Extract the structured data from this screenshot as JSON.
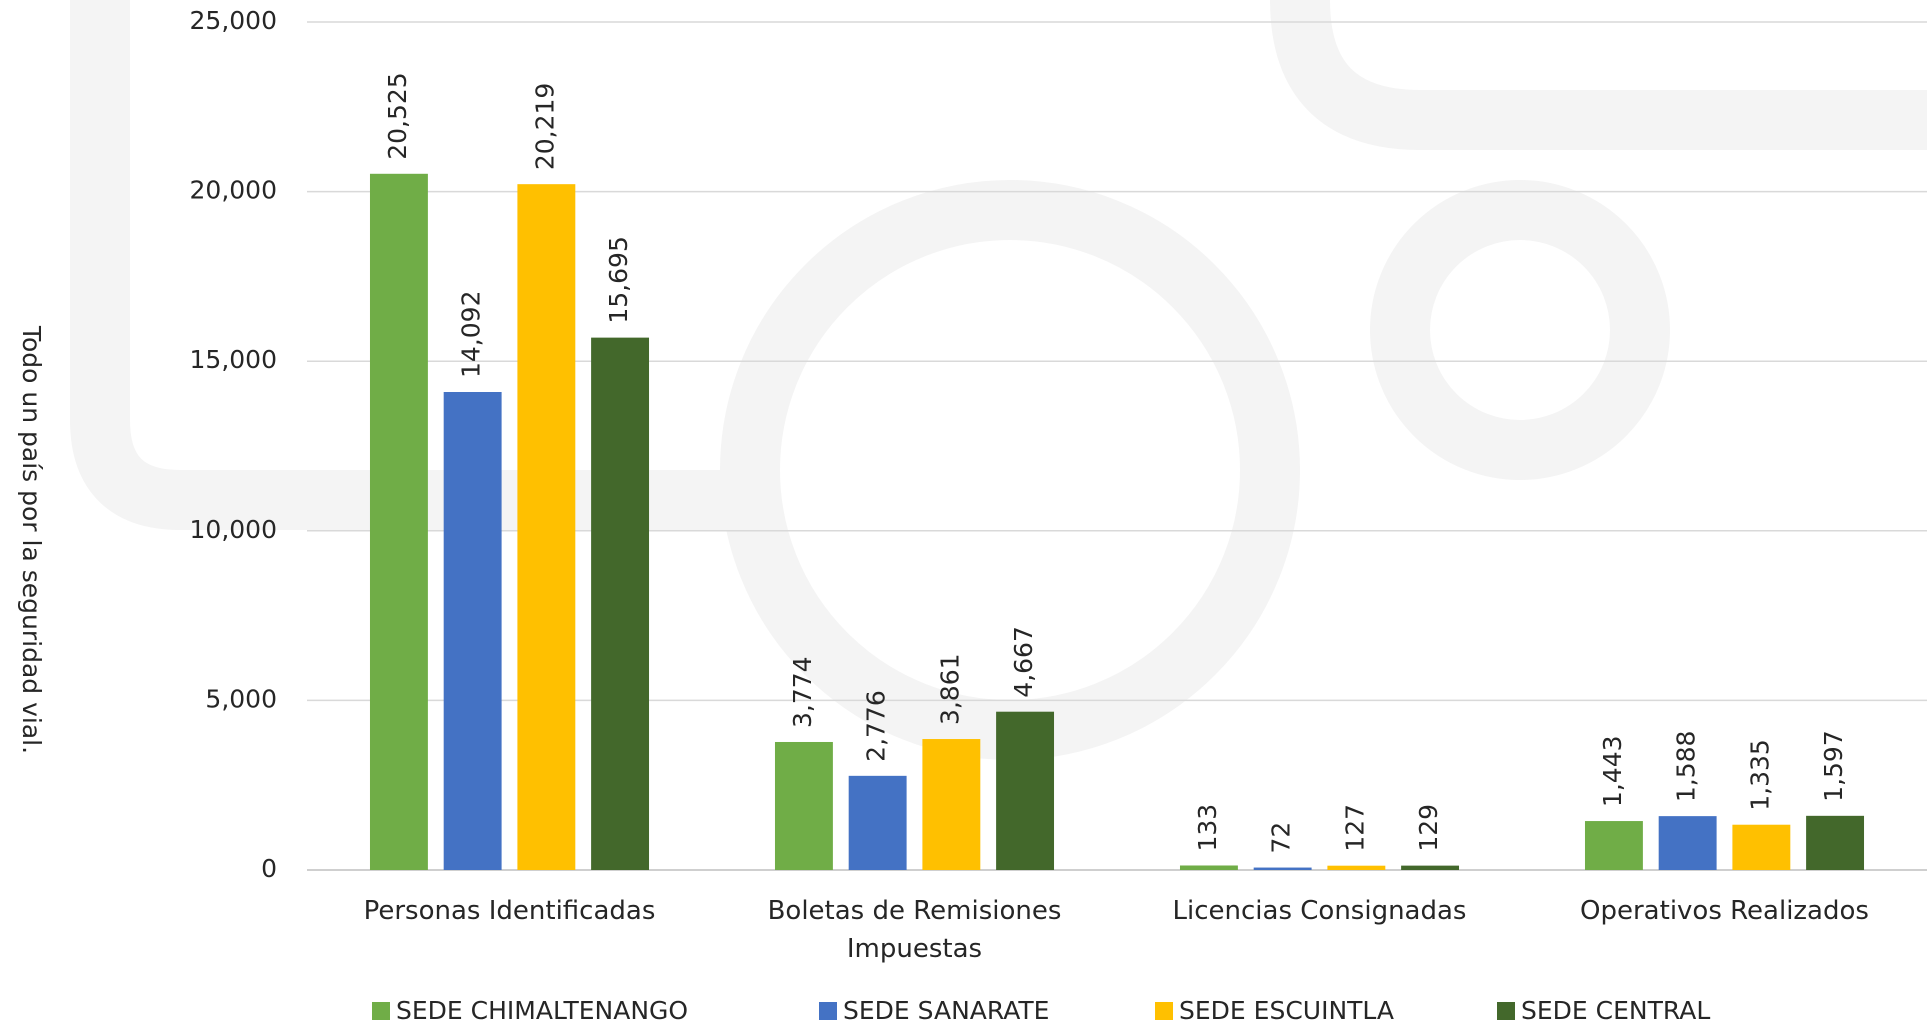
{
  "chart_data": {
    "type": "bar",
    "y_label": "Todo un país por la seguridad vial.",
    "categories": [
      "Personas Identificadas",
      "Boletas de Remisiones Impuestas",
      "Licencias Consignadas",
      "Operativos Realizados"
    ],
    "series": [
      {
        "name": "SEDE CHIMALTENANGO",
        "color": "#70ad47",
        "values": [
          20525,
          3774,
          133,
          1443
        ],
        "value_labels": [
          "20,525",
          "3,774",
          "133",
          "1,443"
        ]
      },
      {
        "name": "SEDE SANARATE",
        "color": "#4472c4",
        "values": [
          14092,
          2776,
          72,
          1588
        ],
        "value_labels": [
          "14,092",
          "2,776",
          "72",
          "1,588"
        ]
      },
      {
        "name": "SEDE ESCUINTLA",
        "color": "#ffc000",
        "values": [
          20219,
          3861,
          127,
          1335
        ],
        "value_labels": [
          "20,219",
          "3,861",
          "127",
          "1,335"
        ]
      },
      {
        "name": "SEDE CENTRAL",
        "color": "#43682b",
        "values": [
          15695,
          4667,
          129,
          1597
        ],
        "value_labels": [
          "15,695",
          "4,667",
          "129",
          "1,597"
        ]
      }
    ],
    "ylim": [
      0,
      25000
    ],
    "yticks": [
      0,
      {
        "value": 5000,
        "label": "5,000"
      },
      {
        "value": 10000,
        "label": "10,000"
      },
      {
        "value": 15000,
        "label": "15,000"
      },
      {
        "value": 20000,
        "label": "20,000"
      },
      {
        "value": 25000,
        "label": "25,000"
      }
    ],
    "grid": true,
    "legend": "bottom"
  }
}
